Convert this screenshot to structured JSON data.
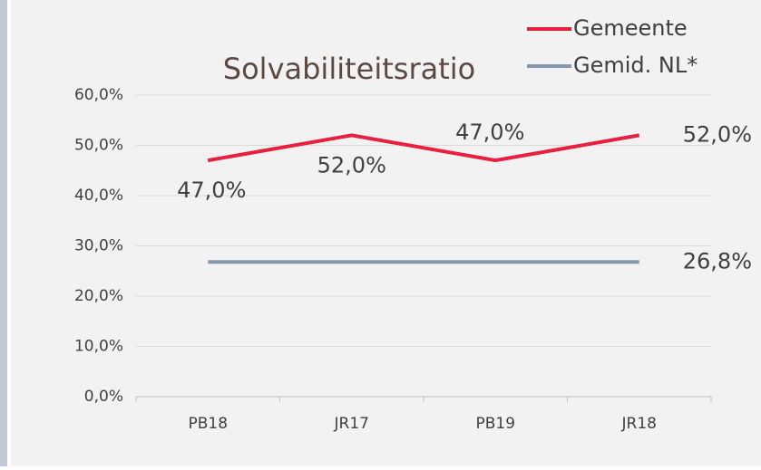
{
  "chart_data": {
    "type": "line",
    "title": "Solvabiliteitsratio",
    "categories": [
      "PB18",
      "JR17",
      "PB19",
      "JR18"
    ],
    "series": [
      {
        "name": "Gemeente",
        "color": "#e8203f",
        "values": [
          47,
          52,
          47,
          52
        ],
        "value_labels": [
          "47,0%",
          "52,0%",
          "47,0%",
          "52,0%"
        ]
      },
      {
        "name": "Gemid. NL*",
        "color": "#8497ab",
        "values": [
          26.8,
          26.8,
          26.8,
          26.8
        ],
        "value_labels": [
          null,
          null,
          null,
          "26,8%"
        ]
      }
    ],
    "ylim": [
      0,
      60
    ],
    "yticks": [
      {
        "value": 0,
        "label": "0,0%"
      },
      {
        "value": 10,
        "label": "10,0%"
      },
      {
        "value": 20,
        "label": "20,0%"
      },
      {
        "value": 30,
        "label": "30,0%"
      },
      {
        "value": 40,
        "label": "40,0%"
      },
      {
        "value": 50,
        "label": "50,0%"
      },
      {
        "value": 60,
        "label": "60,0%"
      }
    ],
    "grid": true,
    "legend": "top-right"
  }
}
